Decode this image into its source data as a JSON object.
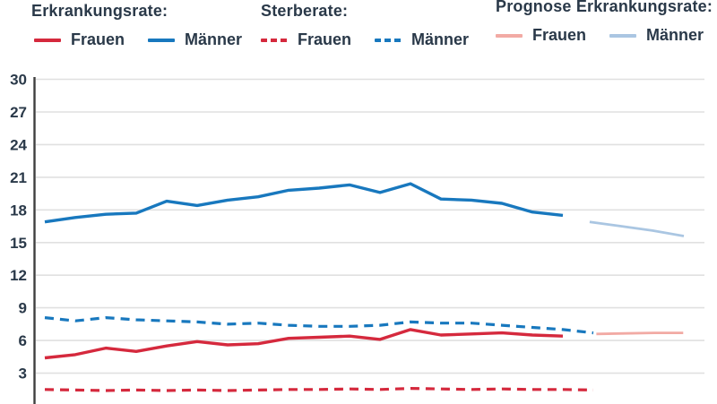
{
  "legend": {
    "groups": [
      {
        "title": "Erkrankungsrate:",
        "items": [
          {
            "label": "Frauen",
            "color": "#d5293d",
            "dash": false
          },
          {
            "label": "Männer",
            "color": "#1878be",
            "dash": false
          }
        ]
      },
      {
        "title": "Sterberate:",
        "items": [
          {
            "label": "Frauen",
            "color": "#d5293d",
            "dash": true
          },
          {
            "label": "Männer",
            "color": "#1878be",
            "dash": true
          }
        ]
      },
      {
        "title": "Prognose Erkrankungsrate:",
        "items": [
          {
            "label": "Frauen",
            "color": "#f2aaa4",
            "dash": false
          },
          {
            "label": "Männer",
            "color": "#aac6e2",
            "dash": false
          }
        ]
      }
    ]
  },
  "chart_data": {
    "type": "line",
    "title": "",
    "xlabel": "",
    "ylabel": "",
    "ylim": [
      0,
      30
    ],
    "yticks": [
      30,
      27,
      24,
      21,
      18,
      15,
      12,
      9,
      6,
      3
    ],
    "grid": "horizontal",
    "x_tick_labels_visible": false,
    "legend_position": "top",
    "colors": {
      "grid": "#e0e0e0",
      "axis": "#3f3f3f",
      "tick_text": "#2a3949"
    },
    "series": [
      {
        "name": "Erkrankungsrate Frauen",
        "slug": "erkrankungsrate-frauen",
        "color": "#d5293d",
        "dash": false,
        "stroke_width": 3.4,
        "i0": 0,
        "values": [
          4.4,
          4.7,
          5.3,
          5.0,
          5.5,
          5.9,
          5.6,
          5.7,
          6.2,
          6.3,
          6.4,
          6.1,
          7.0,
          6.5,
          6.6,
          6.7,
          6.5,
          6.4
        ]
      },
      {
        "name": "Erkrankungsrate Männer",
        "slug": "erkrankungsrate-maenner",
        "color": "#1878be",
        "dash": false,
        "stroke_width": 3.4,
        "i0": 0,
        "values": [
          16.9,
          17.3,
          17.6,
          17.7,
          18.8,
          18.4,
          18.9,
          19.2,
          19.8,
          20.0,
          20.3,
          19.6,
          20.4,
          19.0,
          18.9,
          18.6,
          17.8,
          17.5
        ]
      },
      {
        "name": "Sterberate Frauen",
        "slug": "sterberate-frauen",
        "color": "#d5293d",
        "dash": true,
        "stroke_width": 3.2,
        "i0": 0,
        "values": [
          1.5,
          1.45,
          1.4,
          1.45,
          1.4,
          1.45,
          1.4,
          1.45,
          1.5,
          1.5,
          1.55,
          1.5,
          1.6,
          1.55,
          1.5,
          1.55,
          1.5,
          1.5,
          1.45
        ]
      },
      {
        "name": "Sterberate Männer",
        "slug": "sterberate-maenner",
        "color": "#1878be",
        "dash": true,
        "stroke_width": 3.2,
        "i0": 0,
        "values": [
          8.1,
          7.8,
          8.1,
          7.9,
          7.8,
          7.7,
          7.5,
          7.6,
          7.4,
          7.3,
          7.3,
          7.4,
          7.7,
          7.6,
          7.6,
          7.4,
          7.2,
          7.0,
          6.7
        ]
      },
      {
        "name": "Prognose Erkrankungsrate Frauen",
        "slug": "prognose-erkrankungsrate-frauen",
        "color": "#f2aaa4",
        "dash": false,
        "stroke_width": 2.8,
        "i0": 18.1,
        "di": 0.95,
        "values": [
          6.6,
          6.65,
          6.7,
          6.7
        ]
      },
      {
        "name": "Prognose Erkrankungsrate Männer",
        "slug": "prognose-erkrankungsrate-maenner",
        "color": "#aac6e2",
        "dash": false,
        "stroke_width": 2.8,
        "i0": 17.88,
        "di": 1.03,
        "values": [
          16.9,
          16.5,
          16.1,
          15.6
        ]
      }
    ]
  }
}
